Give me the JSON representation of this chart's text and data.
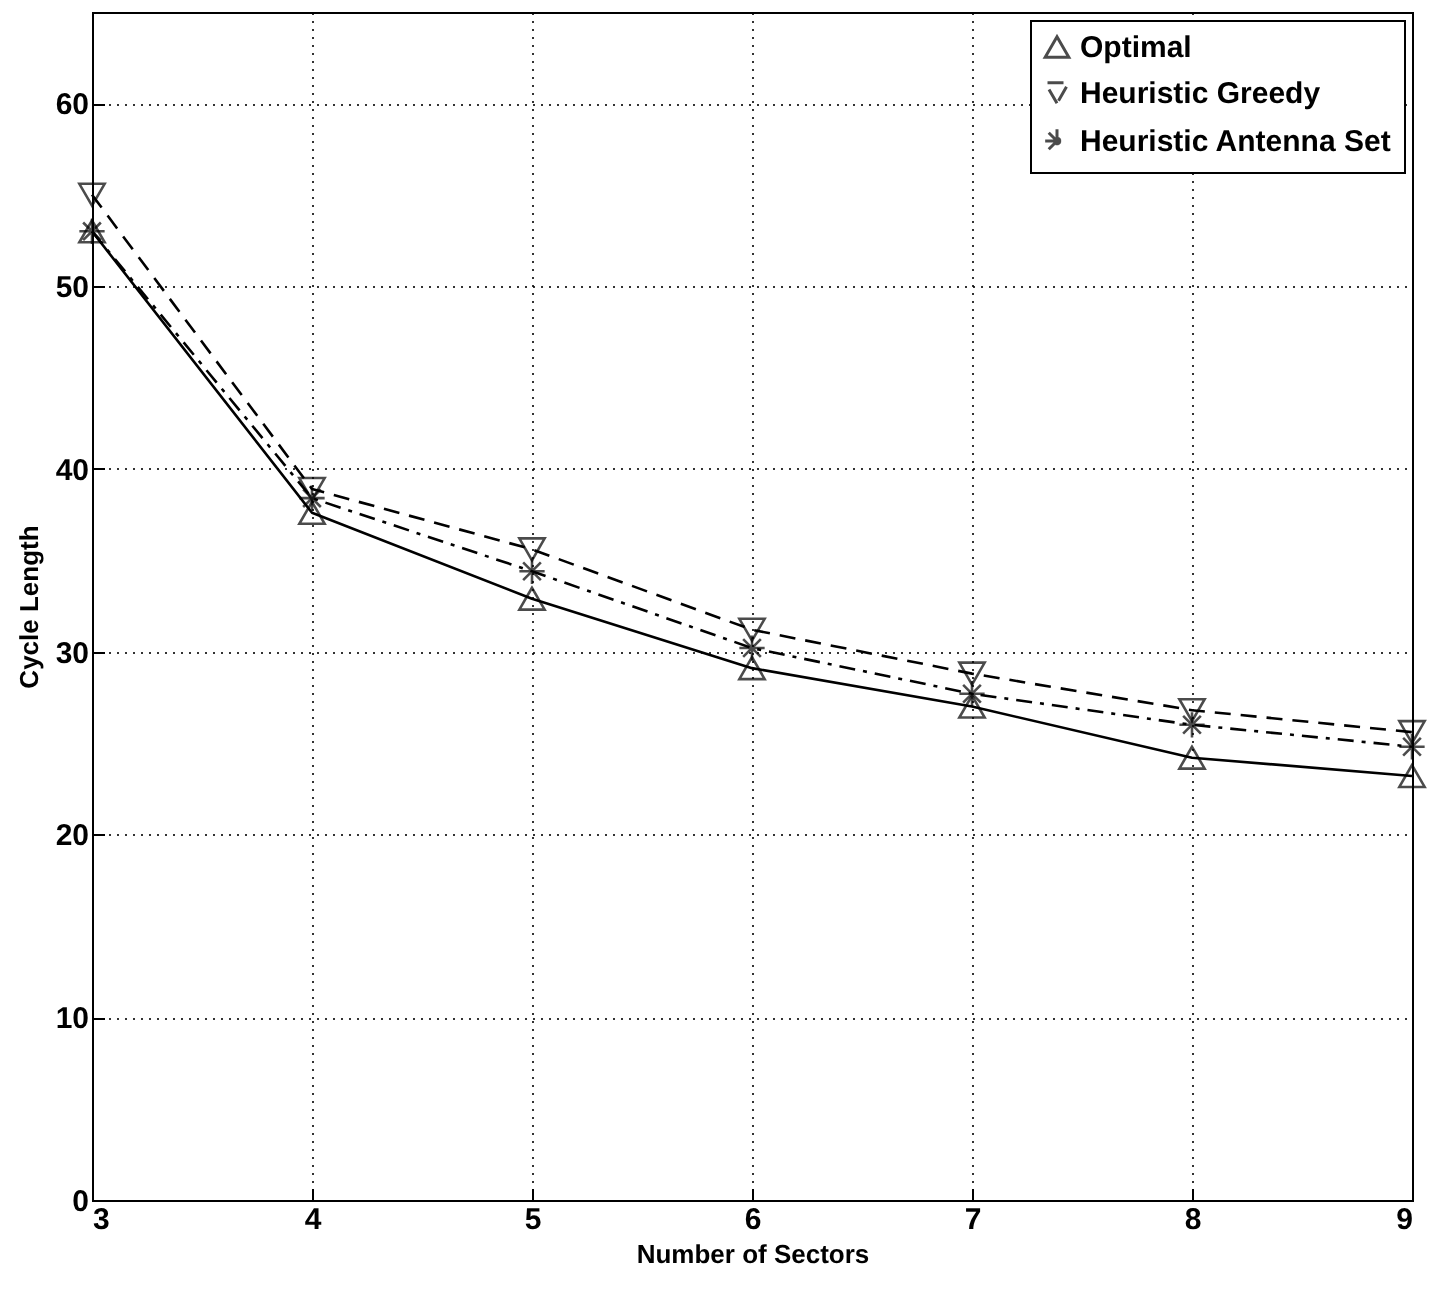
{
  "chart_data": {
    "type": "line",
    "xlabel": "Number of Sectors",
    "ylabel": "Cycle Length",
    "x": [
      3,
      4,
      5,
      6,
      7,
      8,
      9
    ],
    "series": [
      {
        "name": "Optimal",
        "color": "#000000",
        "marker": "triangle",
        "line_style": "solid",
        "values": [
          53,
          37.6,
          32.9,
          29.1,
          27.0,
          24.2,
          23.2
        ]
      },
      {
        "name": "Heuristic Greedy",
        "color": "#000000",
        "marker": "triangle-down",
        "line_style": "dashed",
        "values": [
          55,
          38.9,
          35.6,
          31.2,
          28.8,
          26.8,
          25.6
        ]
      },
      {
        "name": "Heuristic Antenna Set",
        "color": "#000000",
        "marker": "cross",
        "line_style": "dashdot",
        "values": [
          53,
          38.4,
          34.4,
          30.2,
          27.7,
          26.0,
          24.8
        ]
      }
    ],
    "xlim": [
      3,
      9
    ],
    "xticks": [
      3,
      4,
      5,
      6,
      7,
      8,
      9
    ],
    "ylim": [
      0,
      65
    ],
    "yticks": [
      0,
      10,
      20,
      30,
      40,
      50,
      60
    ],
    "grid": true,
    "legend": "top right"
  }
}
